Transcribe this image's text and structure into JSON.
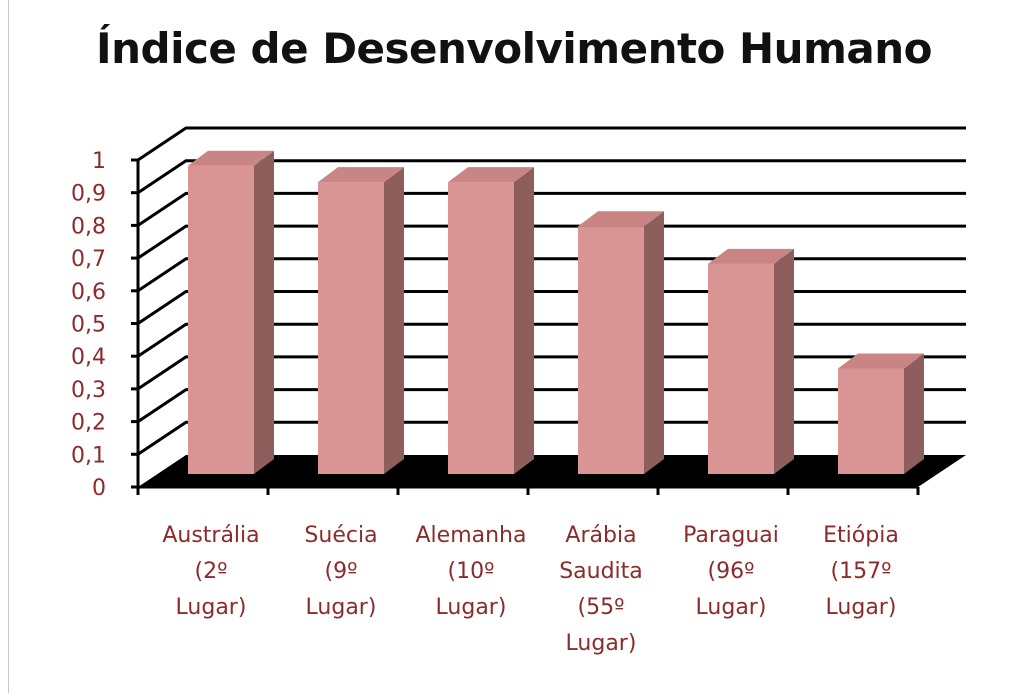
{
  "chart_data": {
    "type": "bar",
    "title": "Índice de Desenvolvimento Humano",
    "categories": [
      "Austrália (2º Lugar)",
      "Suécia (9º Lugar)",
      "Alemanha (10º Lugar)",
      "Arábia Saudita (55º Lugar)",
      "Paraguai (96º Lugar)",
      "Etiópia (157º Lugar)"
    ],
    "category_lines": [
      [
        "Austrália",
        "(2º",
        "Lugar)"
      ],
      [
        "Suécia",
        "(9º",
        "Lugar)"
      ],
      [
        "Alemanha",
        "(10º",
        "Lugar)"
      ],
      [
        "Arábia",
        "Saudita",
        "(55º",
        "Lugar)"
      ],
      [
        "Paraguai",
        "(96º",
        "Lugar)"
      ],
      [
        "Etiópia",
        "(157º",
        "Lugar)"
      ]
    ],
    "values": [
      0.955,
      0.905,
      0.905,
      0.77,
      0.655,
      0.335
    ],
    "ylim": [
      0,
      1
    ],
    "yticks": [
      "0",
      "0,1",
      "0,2",
      "0,3",
      "0,4",
      "0,5",
      "0,6",
      "0,7",
      "0,8",
      "0,9",
      "1"
    ],
    "grid": true,
    "style": "3d-column",
    "colors": {
      "bar_front": "#d99594",
      "bar_side": "#8e5e5d",
      "bar_top": "#c98584",
      "floor": "#000000",
      "labels": "#8b2b2b"
    }
  }
}
